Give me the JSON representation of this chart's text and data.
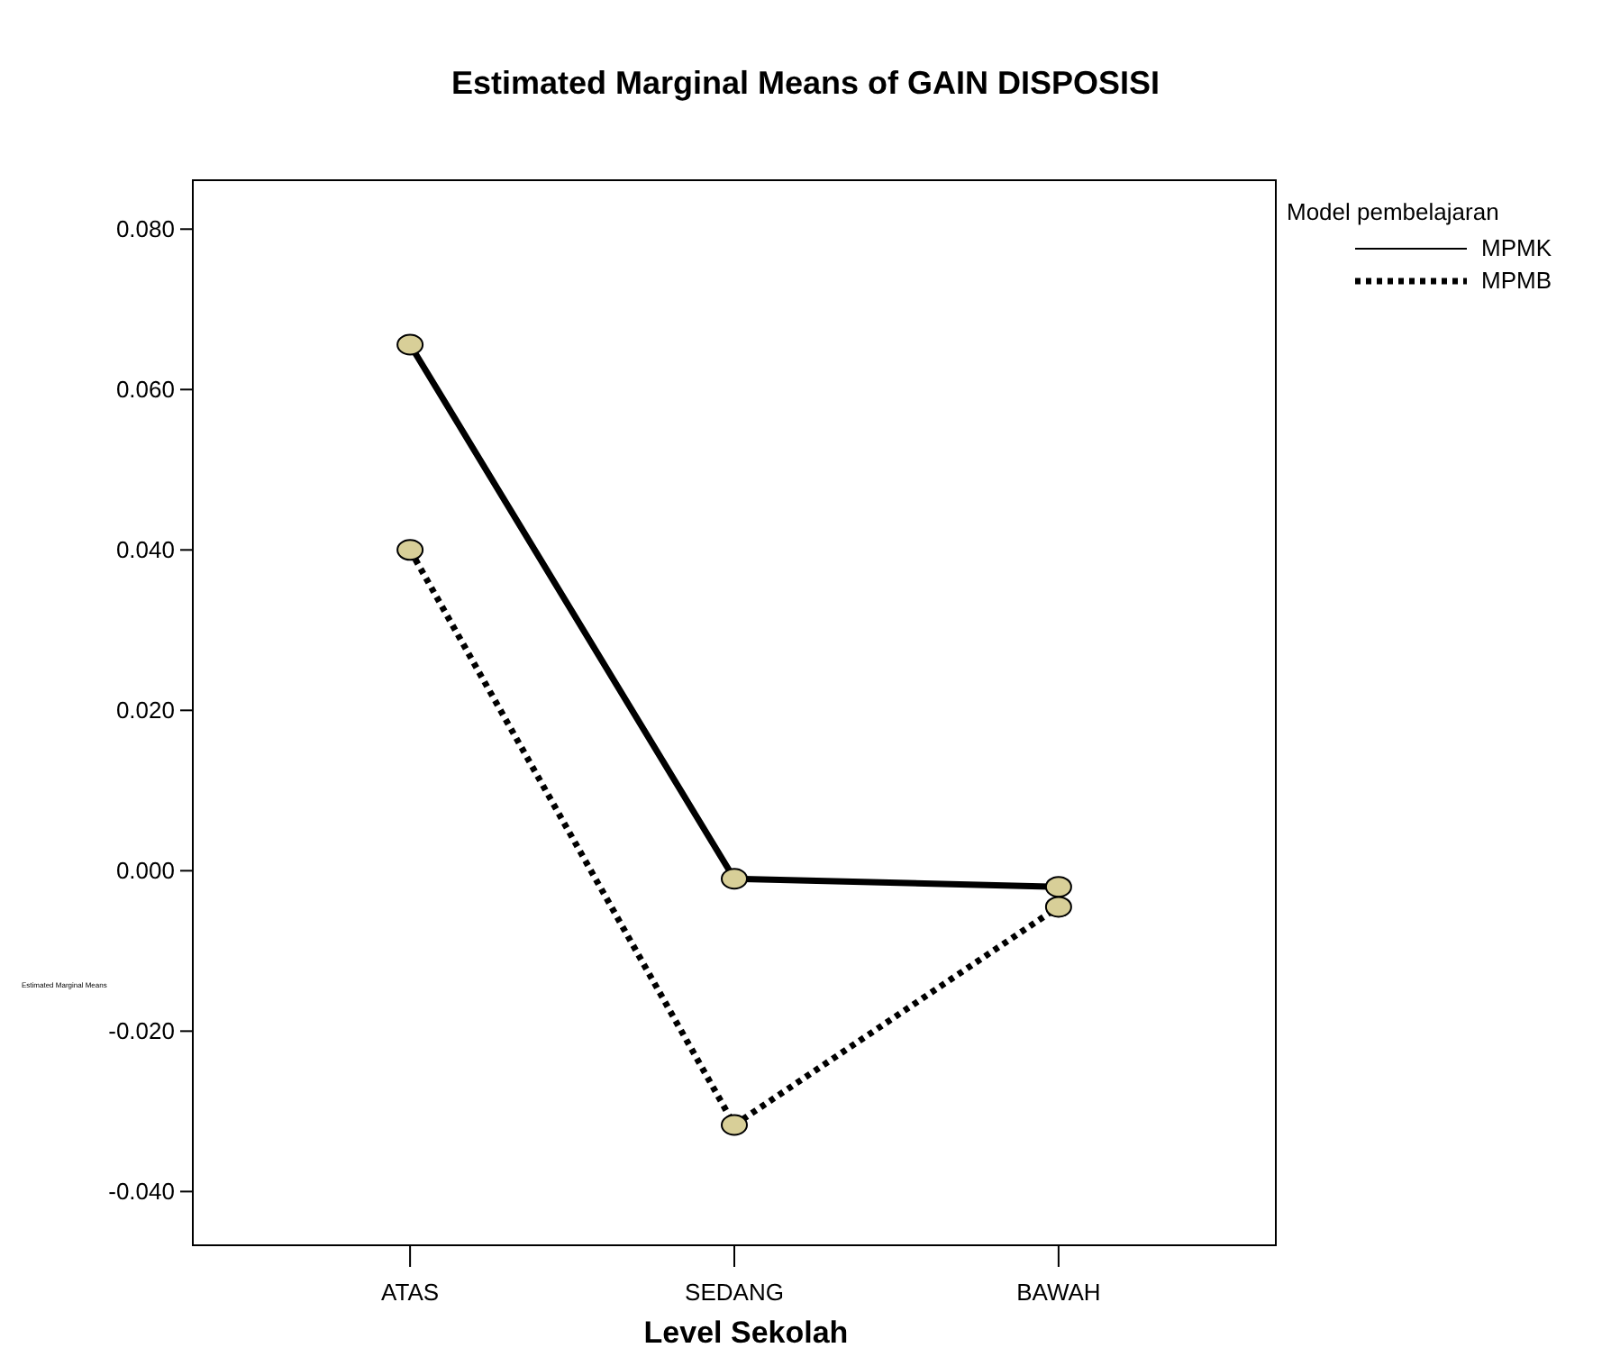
{
  "chart_data": {
    "type": "line",
    "title": "Estimated Marginal Means of GAIN DISPOSISI",
    "xlabel": "Level Sekolah",
    "ylabel": "Estimated Marginal Means",
    "legend_title": "Model pembelajaran",
    "categories": [
      "ATAS",
      "SEDANG",
      "BAWAH"
    ],
    "series": [
      {
        "name": "MPMK",
        "color": "#000000",
        "line_style": "solid",
        "values": [
          0.0656,
          -0.001,
          -0.002
        ]
      },
      {
        "name": "MPMB",
        "color": "#000000",
        "line_style": "dotted",
        "values": [
          0.04,
          -0.0317,
          -0.0045
        ]
      }
    ],
    "ylim": [
      -0.0467,
      0.0861
    ],
    "yticks": [
      {
        "value": -0.04,
        "label": "-0.040"
      },
      {
        "value": -0.02,
        "label": "-0.020"
      },
      {
        "value": 0,
        "label": "0.000"
      },
      {
        "value": 0.02,
        "label": "0.020"
      },
      {
        "value": 0.04,
        "label": "0.040"
      },
      {
        "value": 0.06,
        "label": "0.060"
      },
      {
        "value": 0.08,
        "label": "0.080"
      }
    ],
    "marker": "circle",
    "legend": "top right",
    "grid": false
  }
}
